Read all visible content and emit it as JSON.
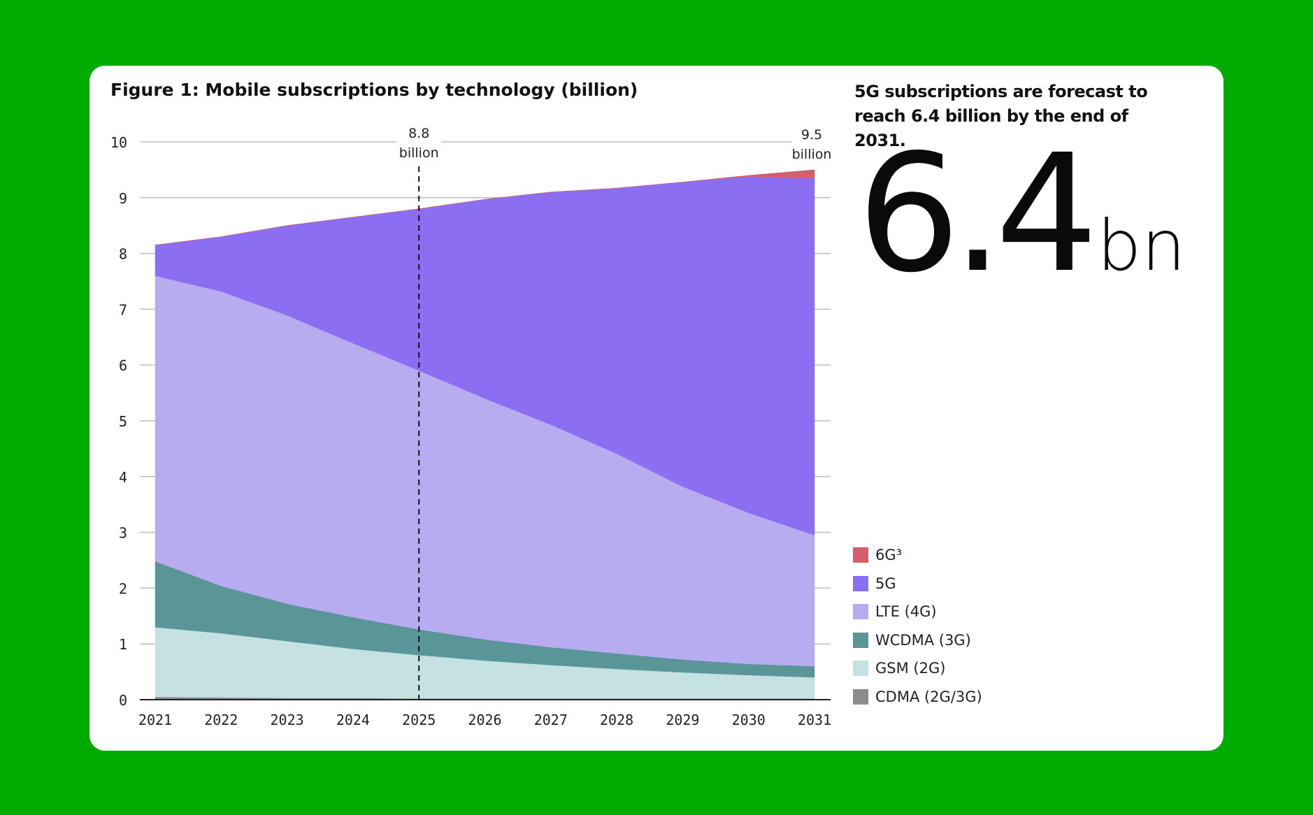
{
  "chart_data": {
    "type": "area",
    "title": "Figure 1: Mobile subscriptions by technology (billion)",
    "x": [
      "2021",
      "2022",
      "2023",
      "2024",
      "2025",
      "2026",
      "2027",
      "2028",
      "2029",
      "2030",
      "2031"
    ],
    "ylim": [
      0,
      10
    ],
    "yticks": [
      "0",
      "1",
      "2",
      "3",
      "4",
      "5",
      "6",
      "7",
      "8",
      "9",
      "10"
    ],
    "stacked": true,
    "grid": true,
    "legend_position": "right",
    "series": [
      {
        "name": "CDMA (2G/3G)",
        "color": "#8c8c8c",
        "values": [
          0.05,
          0.04,
          0.03,
          0.03,
          0.02,
          0.02,
          0.02,
          0.02,
          0.02,
          0.02,
          0.02
        ]
      },
      {
        "name": "GSM (2G)",
        "color": "#c5e1e1",
        "values": [
          1.25,
          1.15,
          1.02,
          0.88,
          0.78,
          0.68,
          0.6,
          0.53,
          0.47,
          0.42,
          0.38
        ]
      },
      {
        "name": "WCDMA (3G)",
        "color": "#5a9698",
        "values": [
          1.18,
          0.85,
          0.67,
          0.57,
          0.46,
          0.38,
          0.32,
          0.28,
          0.23,
          0.2,
          0.2
        ]
      },
      {
        "name": "LTE (4G)",
        "color": "#b8acf1",
        "values": [
          5.12,
          5.28,
          5.17,
          4.91,
          4.64,
          4.32,
          3.99,
          3.58,
          3.1,
          2.71,
          2.35
        ]
      },
      {
        "name": "5G",
        "color": "#8b6ef2",
        "values": [
          0.55,
          0.98,
          1.61,
          2.26,
          2.9,
          3.57,
          4.17,
          4.76,
          5.46,
          6.03,
          6.4
        ]
      },
      {
        "name": "6G³",
        "color": "#d25f6e",
        "values": [
          0,
          0,
          0,
          0,
          0,
          0,
          0,
          0,
          0,
          0.02,
          0.15
        ]
      }
    ],
    "annotations": [
      {
        "x": "2025",
        "value_label": "8.8",
        "unit_label": "billion",
        "style": "dashed-line"
      },
      {
        "x": "2031",
        "value_label": "9.5",
        "unit_label": "billion"
      }
    ]
  },
  "headline": "5G subscriptions are forecast to reach 6.4 billion by the end of 2031.",
  "big_stat": {
    "number": "6.4",
    "unit": "bn"
  },
  "colors": {
    "page_background": "#00ab00",
    "card": "#ffffff"
  }
}
